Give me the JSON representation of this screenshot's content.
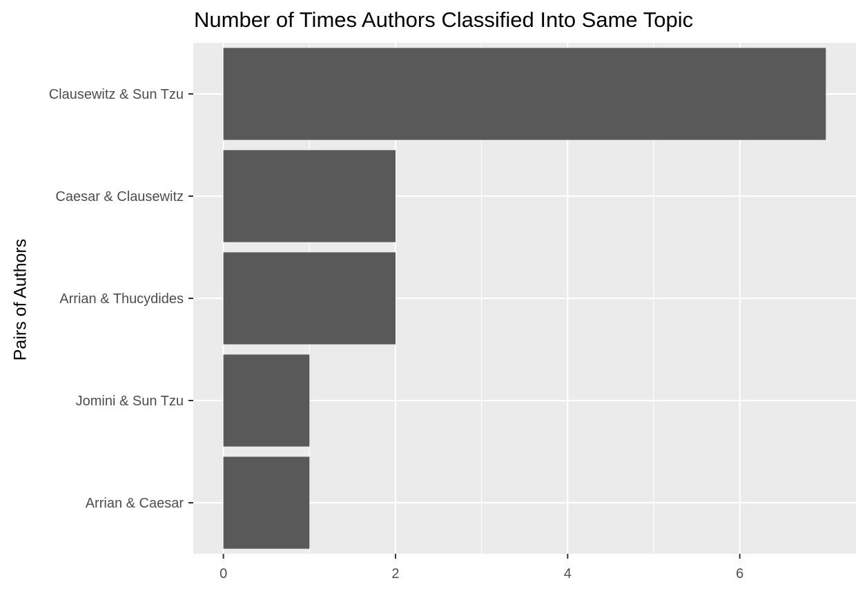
{
  "chart_data": {
    "type": "bar",
    "orientation": "horizontal",
    "title": "Number of Times Authors Classified Into Same Topic",
    "xlabel": "",
    "ylabel": "Pairs of Authors",
    "categories": [
      "Clausewitz & Sun Tzu",
      "Caesar & Clausewitz",
      "Arrian & Thucydides",
      "Jomini & Sun Tzu",
      "Arrian & Caesar"
    ],
    "values": [
      7,
      2,
      2,
      1,
      1
    ],
    "xlim": [
      -0.35,
      7.35
    ],
    "x_ticks": [
      0,
      2,
      4,
      6
    ],
    "grid": true,
    "legend": "none",
    "colors": {
      "panel_background": "#ebebeb",
      "grid": "#ffffff",
      "bar": "#595959",
      "tick_text": "#4d4d4d",
      "axis_ticks": "#333333"
    }
  }
}
